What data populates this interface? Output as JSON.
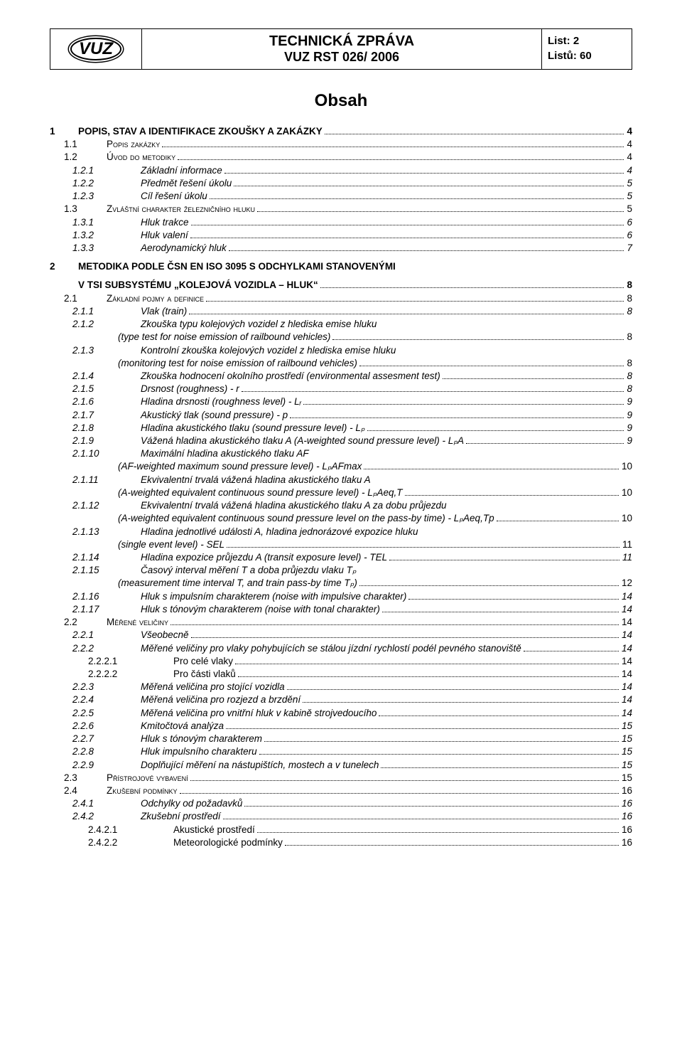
{
  "header": {
    "logo_text": "VUZ",
    "title_line1": "TECHNICKÁ ZPRÁVA",
    "title_line2": "VUZ RST 026/ 2006",
    "meta_line1": "List: 2",
    "meta_line2": "Listů: 60"
  },
  "toc_title": "Obsah",
  "toc": [
    {
      "lvl": 1,
      "num": "1",
      "label": "POPIS, STAV A IDENTIFIKACE ZKOUŠKY A ZAKÁZKY",
      "pg": "4",
      "gap": false
    },
    {
      "lvl": 2,
      "num": "1.1",
      "label": "Popis zakázky",
      "pg": "4"
    },
    {
      "lvl": 2,
      "num": "1.2",
      "label": "Úvod do metodiky",
      "pg": "4"
    },
    {
      "lvl": 3,
      "num": "1.2.1",
      "label": "Základní informace",
      "pg": "4"
    },
    {
      "lvl": 3,
      "num": "1.2.2",
      "label": "Předmět řešení úkolu",
      "pg": "5"
    },
    {
      "lvl": 3,
      "num": "1.2.3",
      "label": "Cíl řešení úkolu",
      "pg": "5"
    },
    {
      "lvl": 2,
      "num": "1.3",
      "label": "Zvláštní charakter železničního hluku",
      "pg": "5"
    },
    {
      "lvl": 3,
      "num": "1.3.1",
      "label": "Hluk trakce",
      "pg": "6"
    },
    {
      "lvl": 3,
      "num": "1.3.2",
      "label": "Hluk valení",
      "pg": "6"
    },
    {
      "lvl": 3,
      "num": "1.3.3",
      "label": "Aerodynamický hluk",
      "pg": "7"
    },
    {
      "lvl": 1,
      "num": "2",
      "label": "METODIKA PODLE ČSN EN ISO 3095 S ODCHYLKAMI STANOVENÝMI",
      "pg": "",
      "gap": true,
      "noleader": true
    },
    {
      "lvl": 1,
      "num": "",
      "label": "V TSI SUBSYSTÉMU „KOLEJOVÁ VOZIDLA – HLUK“",
      "pg": "8",
      "gap": true
    },
    {
      "lvl": 2,
      "num": "2.1",
      "label": "Základní pojmy a definice",
      "pg": "8"
    },
    {
      "lvl": 3,
      "num": "2.1.1",
      "label": "Vlak (train)",
      "pg": "8"
    },
    {
      "lvl": 3,
      "num": "2.1.2",
      "label": "Zkouška typu kolejových vozidel z hlediska emise hluku",
      "pg": "",
      "noleader": true
    },
    {
      "lvl": "cont",
      "label": "(type test for noise emission of railbound vehicles)",
      "pg": "8"
    },
    {
      "lvl": 3,
      "num": "2.1.3",
      "label": "Kontrolní zkouška kolejových vozidel z hlediska emise hluku",
      "pg": "",
      "noleader": true
    },
    {
      "lvl": "cont",
      "label": "(monitoring test for noise emission of railbound vehicles)",
      "pg": "8"
    },
    {
      "lvl": 3,
      "num": "2.1.4",
      "label": "Zkouška hodnocení okolního prostředí (environmental assesment test)",
      "pg": "8"
    },
    {
      "lvl": 3,
      "num": "2.1.5",
      "label": "Drsnost (roughness) - r",
      "pg": "8"
    },
    {
      "lvl": 3,
      "num": "2.1.6",
      "label": "Hladina drsnosti (roughness level) - Lᵣ",
      "pg": "9"
    },
    {
      "lvl": 3,
      "num": "2.1.7",
      "label": "Akustický tlak (sound pressure) - p",
      "pg": "9"
    },
    {
      "lvl": 3,
      "num": "2.1.8",
      "label": "Hladina akustického tlaku (sound pressure level) - Lₚ",
      "pg": "9"
    },
    {
      "lvl": 3,
      "num": "2.1.9",
      "label": "Vážená hladina akustického tlaku A (A-weighted sound pressure level) - LₚA",
      "pg": "9"
    },
    {
      "lvl": 3,
      "num": "2.1.10",
      "label": "Maximální hladina akustického tlaku AF",
      "pg": "",
      "noleader": true
    },
    {
      "lvl": "cont",
      "label": "(AF-weighted maximum sound pressure level) - LₚAFmax",
      "pg": "10"
    },
    {
      "lvl": 3,
      "num": "2.1.11",
      "label": "Ekvivalentní trvalá vážená hladina akustického tlaku A",
      "pg": "",
      "noleader": true
    },
    {
      "lvl": "cont",
      "label": "(A-weighted equivalent continuous sound pressure level) - LₚAeq,T",
      "pg": "10"
    },
    {
      "lvl": 3,
      "num": "2.1.12",
      "label": "Ekvivalentní trvalá vážená hladina akustického tlaku A za dobu průjezdu",
      "pg": "",
      "noleader": true
    },
    {
      "lvl": "cont",
      "label": "(A-weighted equivalent continuous sound pressure level on the pass-by time) - LₚAeq,Tp",
      "pg": "10"
    },
    {
      "lvl": 3,
      "num": "2.1.13",
      "label": "Hladina jednotlivé události A, hladina jednorázové expozice hluku",
      "pg": "",
      "noleader": true
    },
    {
      "lvl": "cont",
      "label": "(single event level) - SEL",
      "pg": "11"
    },
    {
      "lvl": 3,
      "num": "2.1.14",
      "label": "Hladina expozice průjezdu A (transit exposure level) - TEL",
      "pg": "11"
    },
    {
      "lvl": 3,
      "num": "2.1.15",
      "label": "Časový interval měření T a doba průjezdu vlaku Tₚ",
      "pg": "",
      "noleader": true
    },
    {
      "lvl": "cont",
      "label": "(measurement time interval T, and train pass-by time Tₚ)",
      "pg": "12"
    },
    {
      "lvl": 3,
      "num": "2.1.16",
      "label": "Hluk s impulsním charakterem (noise with impulsive charakter)",
      "pg": "14"
    },
    {
      "lvl": 3,
      "num": "2.1.17",
      "label": "Hluk s tónovým charakterem (noise with tonal charakter)",
      "pg": "14"
    },
    {
      "lvl": 2,
      "num": "2.2",
      "label": "Měřené veličiny",
      "pg": "14"
    },
    {
      "lvl": 3,
      "num": "2.2.1",
      "label": "Všeobecně",
      "pg": "14"
    },
    {
      "lvl": 3,
      "num": "2.2.2",
      "label": "Měřené veličiny pro vlaky pohybujících se stálou jízdní rychlostí podél pevného stanoviště",
      "pg": "14"
    },
    {
      "lvl": 4,
      "num": "2.2.2.1",
      "label": "Pro celé vlaky",
      "pg": "14"
    },
    {
      "lvl": 4,
      "num": "2.2.2.2",
      "label": "Pro části vlaků",
      "pg": "14"
    },
    {
      "lvl": 3,
      "num": "2.2.3",
      "label": "Měřená veličina pro stojící vozidla",
      "pg": "14"
    },
    {
      "lvl": 3,
      "num": "2.2.4",
      "label": "Měřená veličina pro rozjezd a brzdění",
      "pg": "14"
    },
    {
      "lvl": 3,
      "num": "2.2.5",
      "label": "Měřená veličina pro vnitřní hluk v kabině strojvedoucího",
      "pg": "14"
    },
    {
      "lvl": 3,
      "num": "2.2.6",
      "label": "Kmitočtová analýza",
      "pg": "15"
    },
    {
      "lvl": 3,
      "num": "2.2.7",
      "label": "Hluk s tónovým charakterem",
      "pg": "15"
    },
    {
      "lvl": 3,
      "num": "2.2.8",
      "label": "Hluk impulsního charakteru",
      "pg": "15"
    },
    {
      "lvl": 3,
      "num": "2.2.9",
      "label": "Doplňující měření na nástupištích, mostech a v tunelech",
      "pg": "15"
    },
    {
      "lvl": 2,
      "num": "2.3",
      "label": "Přístrojové vybavení",
      "pg": "15"
    },
    {
      "lvl": 2,
      "num": "2.4",
      "label": "Zkušební podmínky",
      "pg": "16"
    },
    {
      "lvl": 3,
      "num": "2.4.1",
      "label": "Odchylky od požadavků",
      "pg": "16"
    },
    {
      "lvl": 3,
      "num": "2.4.2",
      "label": "Zkušební prostředí",
      "pg": "16"
    },
    {
      "lvl": 4,
      "num": "2.4.2.1",
      "label": "Akustické prostředí",
      "pg": "16"
    },
    {
      "lvl": 4,
      "num": "2.4.2.2",
      "label": "Meteorologické podmínky",
      "pg": "16"
    }
  ]
}
